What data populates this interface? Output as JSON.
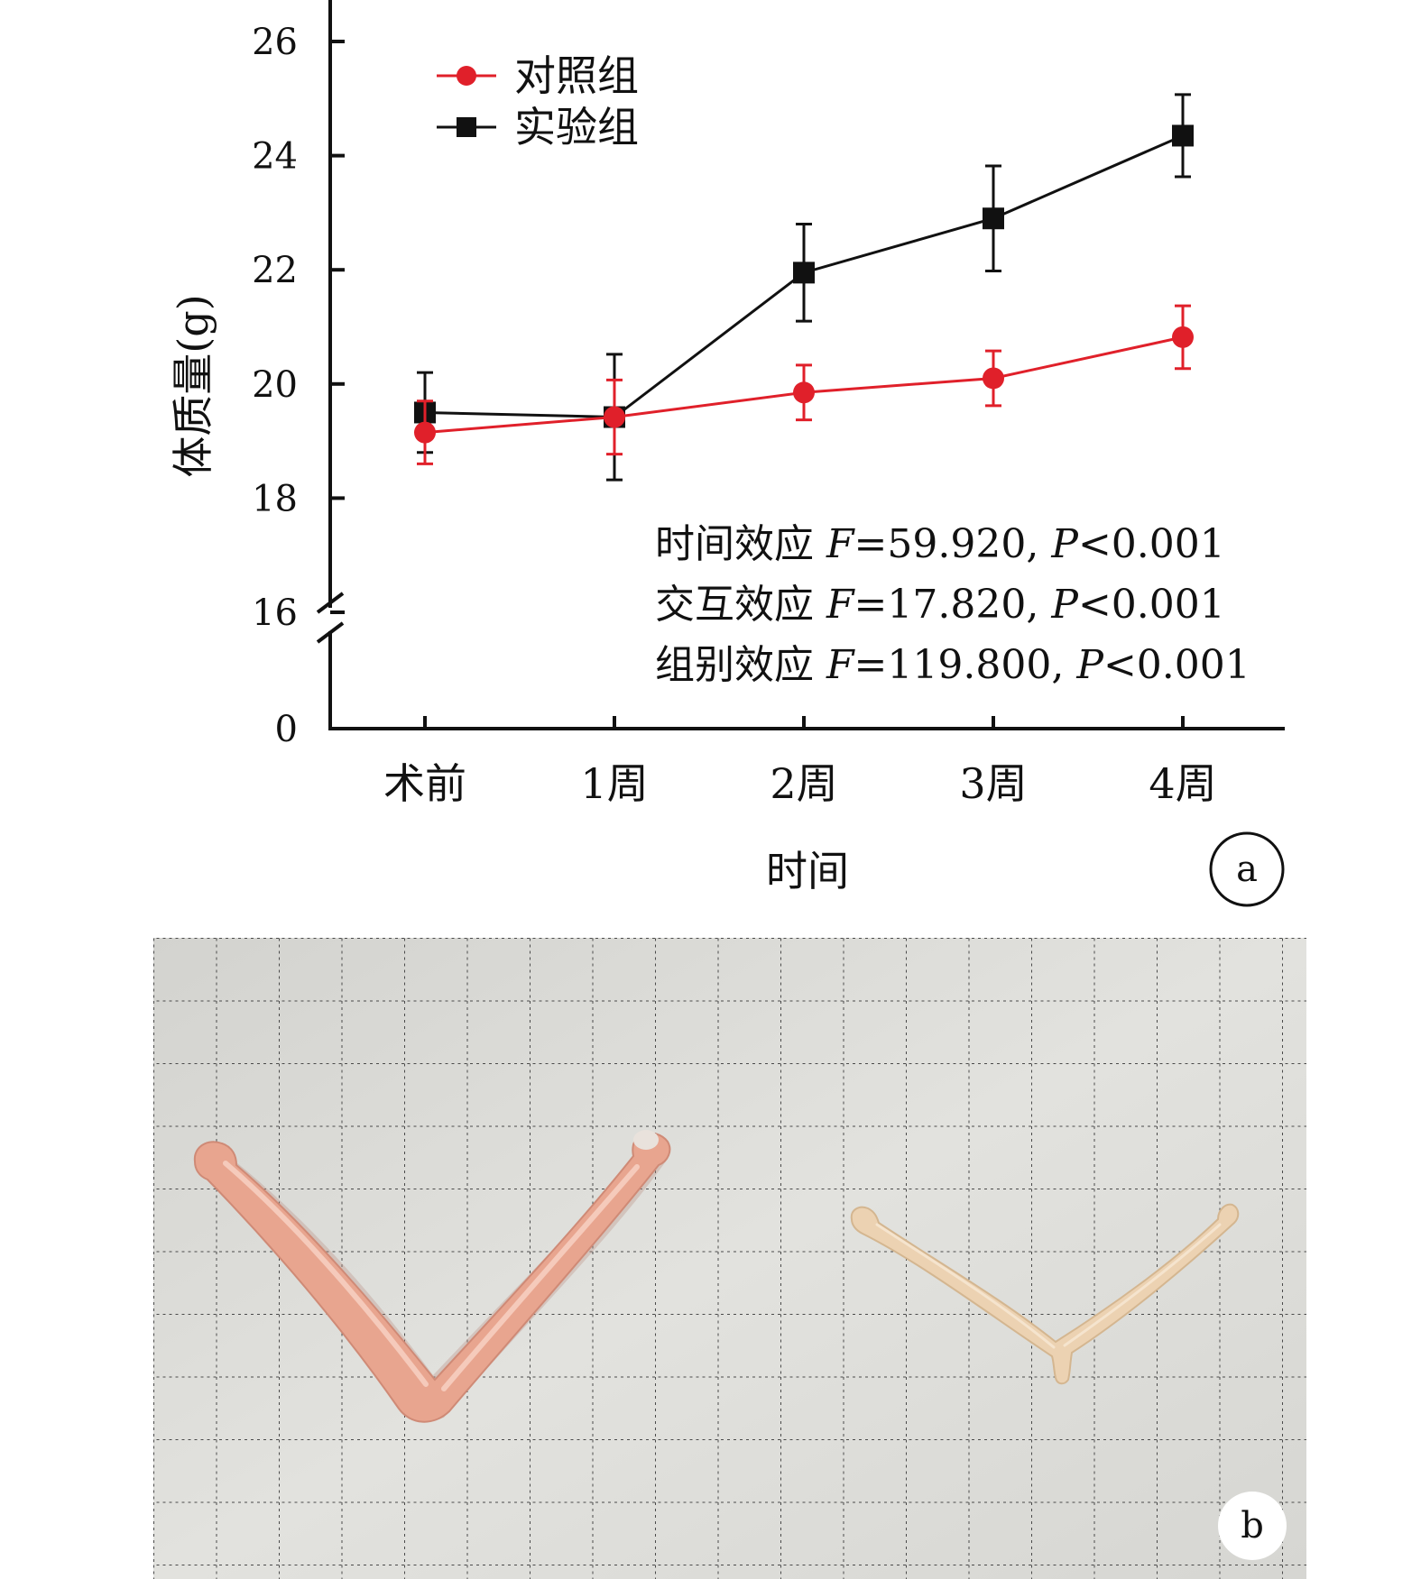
{
  "chart_data": {
    "type": "line",
    "xlabel": "时间",
    "ylabel": "体质量(g)",
    "categories": [
      "术前",
      "1周",
      "2周",
      "3周",
      "4周"
    ],
    "y_ticks": [
      0,
      16,
      18,
      20,
      22,
      24,
      26
    ],
    "y_axis_break": [
      0,
      16
    ],
    "ylim": [
      16,
      26.6
    ],
    "grid": false,
    "legend_position": "top-left",
    "series": [
      {
        "name": "对照组",
        "color": "#e0202a",
        "marker": "circle",
        "values": [
          19.15,
          19.42,
          19.85,
          20.1,
          20.82
        ],
        "errors": [
          0.55,
          0.65,
          0.48,
          0.48,
          0.55
        ]
      },
      {
        "name": "实验组",
        "color": "#111111",
        "marker": "square",
        "values": [
          19.5,
          19.42,
          21.95,
          22.9,
          24.35
        ],
        "errors": [
          0.7,
          1.1,
          0.85,
          0.92,
          0.72
        ]
      }
    ],
    "annotations": [
      {
        "label": "时间效应",
        "f": "F",
        "f_value": "=59.920, ",
        "p": "P",
        "p_value": "<0.001"
      },
      {
        "label": "交互效应",
        "f": "F",
        "f_value": "=17.820, ",
        "p": "P",
        "p_value": "<0.001"
      },
      {
        "label": "组别效应",
        "f": "F",
        "f_value": "=119.800, ",
        "p": "P",
        "p_value": "<0.001"
      }
    ],
    "panel_label": "a"
  },
  "photo": {
    "panel_label": "b",
    "colors": {
      "paper": "#dcdcd8",
      "grid_line": "#4a4a4a",
      "left_bone": "#e8a58f",
      "right_bone": "#ecd2b2"
    }
  }
}
